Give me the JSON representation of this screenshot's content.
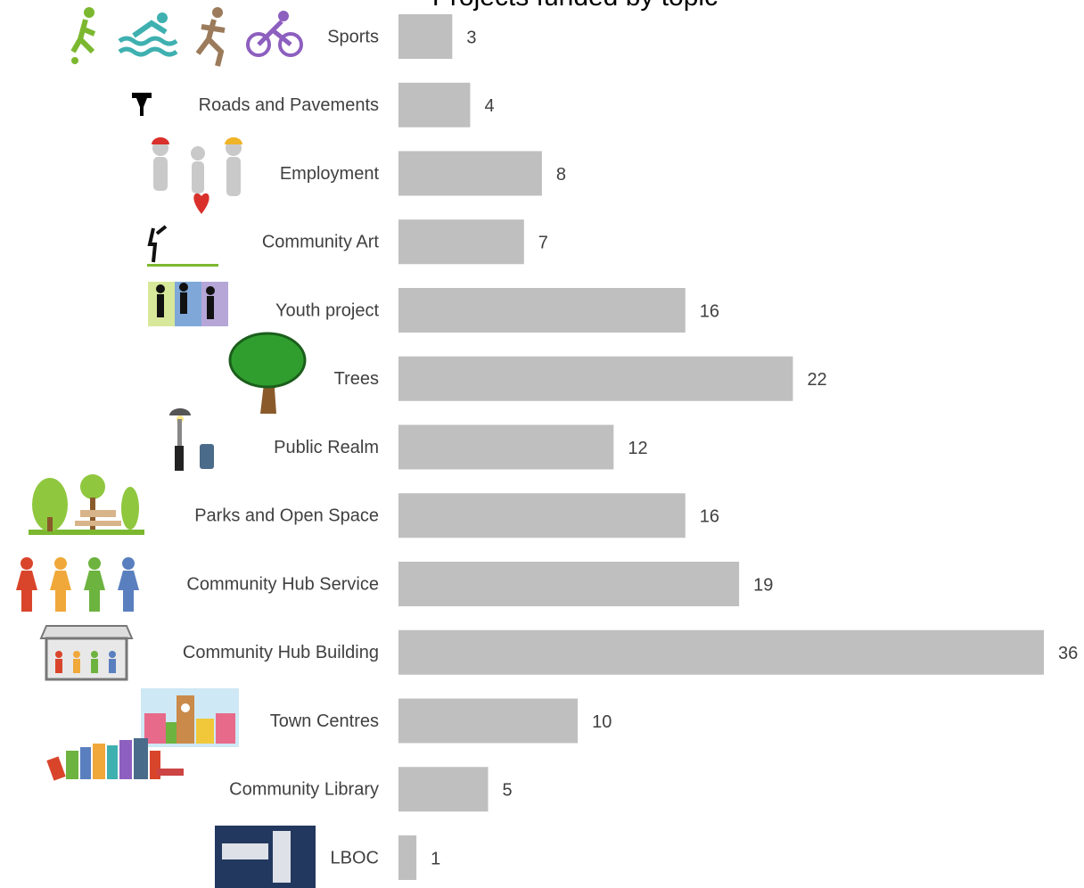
{
  "chart_data": {
    "type": "bar",
    "orientation": "horizontal",
    "title": "Projects funded by topic",
    "categories": [
      "Sports",
      "Roads and Pavements",
      "Employment",
      "Community Art",
      "Youth project",
      "Trees",
      "Public Realm",
      "Parks and Open Space",
      "Community Hub Service",
      "Community Hub Building",
      "Town Centres",
      "Community Library",
      "LBOC"
    ],
    "values": [
      3,
      4,
      8,
      7,
      16,
      22,
      12,
      16,
      19,
      36,
      10,
      5,
      1
    ],
    "color": "#bfbfbf",
    "grid": false
  }
}
